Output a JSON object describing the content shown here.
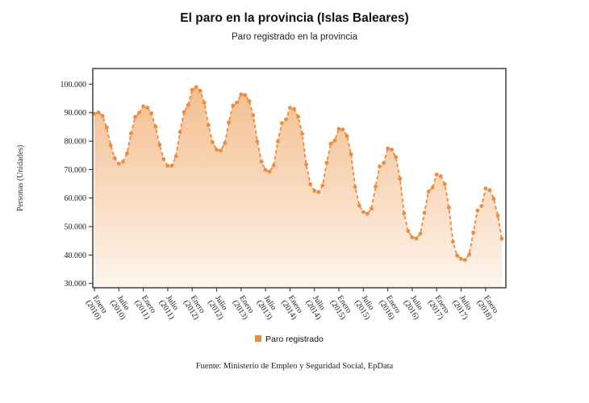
{
  "page": {
    "source_note": "Fuente: Ministerio de Empleo y Seguridad Social, EpData"
  },
  "chart_data": {
    "type": "area",
    "title": "El paro en la provincia (Islas Baleares)",
    "subtitle": "Paro registrado en la provincia",
    "xlabel": "",
    "ylabel": "Personas (Unidades)",
    "ylim": [
      30000,
      100000
    ],
    "grid": false,
    "legend_position": "bottom",
    "line_style": "dashed",
    "markers": true,
    "x_unit": "month",
    "x_start": "Enero 2010",
    "x_end": "Mayo 2018",
    "x_tick_every_points": 6,
    "x_tick_labels": [
      [
        "Enero",
        "(2010)"
      ],
      [
        "Julio",
        "(2010)"
      ],
      [
        "Enero",
        "(2011)"
      ],
      [
        "Julio",
        "(2011)"
      ],
      [
        "Enero",
        "(2012)"
      ],
      [
        "Julio",
        "(2012)"
      ],
      [
        "Enero",
        "(2013)"
      ],
      [
        "Julio",
        "(2013)"
      ],
      [
        "Enero",
        "(2014)"
      ],
      [
        "Julio",
        "(2014)"
      ],
      [
        "Enero",
        "(2015)"
      ],
      [
        "Julio",
        "(2015)"
      ],
      [
        "Enero",
        "(2016)"
      ],
      [
        "Julio",
        "(2016)"
      ],
      [
        "Enero",
        "(2017)"
      ],
      [
        "Julio",
        "(2017)"
      ],
      [
        "Enero",
        "(2018)"
      ]
    ],
    "y_ticks": [
      30000,
      40000,
      50000,
      60000,
      70000,
      80000,
      90000,
      100000
    ],
    "y_tick_labels": [
      "30.000",
      "40.000",
      "50.000",
      "60.000",
      "70.000",
      "80.000",
      "90.000",
      "100.000"
    ],
    "legend": [
      {
        "label": "Paro registrado",
        "color": "#ED8B41"
      }
    ],
    "series": [
      {
        "name": "Paro registrado",
        "values": [
          89600,
          90100,
          88900,
          84800,
          78500,
          74000,
          72100,
          72800,
          75700,
          82700,
          88500,
          90000,
          92200,
          91700,
          89800,
          85100,
          78700,
          73700,
          71300,
          71400,
          74700,
          83200,
          90200,
          92700,
          98000,
          99000,
          97600,
          93500,
          85600,
          79600,
          77000,
          76700,
          79300,
          86600,
          92500,
          93600,
          96400,
          96200,
          94000,
          89100,
          79800,
          72800,
          69900,
          69300,
          71500,
          79900,
          86300,
          87600,
          91700,
          91300,
          88600,
          82600,
          71800,
          64900,
          62600,
          62100,
          64400,
          72400,
          79100,
          80200,
          84300,
          84100,
          81800,
          75400,
          63900,
          57400,
          55100,
          54500,
          56300,
          64000,
          71100,
          72300,
          77400,
          77000,
          74400,
          66800,
          54600,
          48400,
          46200,
          45800,
          47500,
          54800,
          62300,
          63700,
          68300,
          67700,
          64900,
          56700,
          44700,
          39800,
          38600,
          38300,
          40200,
          47900,
          55600,
          57200,
          63400,
          62800,
          59800,
          53800,
          45700
        ]
      }
    ],
    "colors": {
      "line": "#ED8B41",
      "marker": "#ED8B41",
      "area_top": "#F4BE8E",
      "area_bottom": "#FDF5ED",
      "frame": "#333333"
    }
  }
}
